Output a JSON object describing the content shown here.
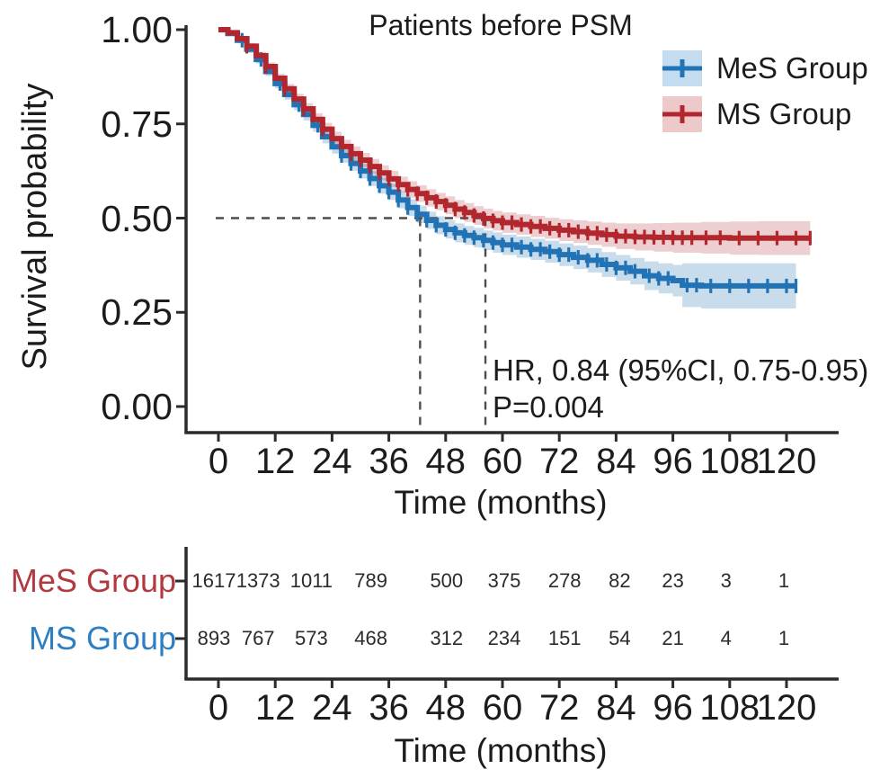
{
  "figure": {
    "title": "Patients before PSM",
    "annotation_line1": "HR, 0.84 (95%CI, 0.75-0.95)",
    "annotation_line2": "P=0.004"
  },
  "axes": {
    "y_label": "Survival probability",
    "x_label": "Time (months)",
    "y_ticks": [
      {
        "label": "1.00",
        "value": 1.0
      },
      {
        "label": "0.75",
        "value": 0.75
      },
      {
        "label": "0.50",
        "value": 0.5
      },
      {
        "label": "0.25",
        "value": 0.25
      },
      {
        "label": "0.00",
        "value": 0.0
      }
    ],
    "x_ticks": [
      {
        "label": "0",
        "value": 0
      },
      {
        "label": "12",
        "value": 12
      },
      {
        "label": "24",
        "value": 24
      },
      {
        "label": "36",
        "value": 36
      },
      {
        "label": "48",
        "value": 48
      },
      {
        "label": "60",
        "value": 60
      },
      {
        "label": "72",
        "value": 72
      },
      {
        "label": "84",
        "value": 84
      },
      {
        "label": "96",
        "value": 96
      },
      {
        "label": "108",
        "value": 108
      },
      {
        "label": "120",
        "value": 120
      }
    ]
  },
  "legend": {
    "items": [
      {
        "label": "MeS Group",
        "color": "#2273b5",
        "fill": "#c3dcf0"
      },
      {
        "label": "MS Group",
        "color": "#b2262e",
        "fill": "#eec9ca"
      }
    ]
  },
  "colors": {
    "axis": "#2b2b2b",
    "dashed_guide": "#4d4d4d",
    "mes_curve": "#2273b5",
    "ms_curve": "#b2262e",
    "mes_band": "rgba(34,115,181,0.25)",
    "ms_band": "rgba(178,38,46,0.22)",
    "risk_label_mes": "#b13a40",
    "risk_label_ms": "#2e7fc1"
  },
  "chart_data": {
    "type": "line",
    "subtype": "kaplan-meier-step",
    "title": "Patients before PSM",
    "xlabel": "Time (months)",
    "ylabel": "Survival probability",
    "xlim": [
      0,
      126
    ],
    "ylim": [
      0,
      1
    ],
    "x_tick_values": [
      0,
      12,
      24,
      36,
      48,
      60,
      72,
      84,
      96,
      108,
      120
    ],
    "y_tick_values": [
      0,
      0.25,
      0.5,
      0.75,
      1.0
    ],
    "grid": false,
    "legend_position": "top-right",
    "annotation": {
      "hr_text": "HR, 0.84 (95%CI, 0.75-0.95)",
      "p_text": "P=0.004"
    },
    "median_lines": {
      "y": 0.5,
      "x_values": [
        42.6,
        56.4
      ]
    },
    "series": [
      {
        "name": "MeS Group",
        "color": "#2273b5",
        "band_color": "rgba(34,115,181,0.25)",
        "points": [
          [
            0,
            1.0,
            0.004
          ],
          [
            2,
            0.99,
            0.006
          ],
          [
            4,
            0.972,
            0.008
          ],
          [
            6,
            0.948,
            0.01
          ],
          [
            8,
            0.921,
            0.011
          ],
          [
            10,
            0.889,
            0.012
          ],
          [
            12,
            0.857,
            0.013
          ],
          [
            14,
            0.828,
            0.014
          ],
          [
            16,
            0.801,
            0.015
          ],
          [
            18,
            0.775,
            0.016
          ],
          [
            20,
            0.746,
            0.017
          ],
          [
            22,
            0.716,
            0.018
          ],
          [
            24,
            0.689,
            0.018
          ],
          [
            26,
            0.666,
            0.019
          ],
          [
            28,
            0.645,
            0.019
          ],
          [
            30,
            0.625,
            0.02
          ],
          [
            32,
            0.605,
            0.02
          ],
          [
            34,
            0.586,
            0.021
          ],
          [
            36,
            0.569,
            0.021
          ],
          [
            38,
            0.548,
            0.022
          ],
          [
            40,
            0.528,
            0.022
          ],
          [
            42,
            0.51,
            0.023
          ],
          [
            44,
            0.494,
            0.023
          ],
          [
            46,
            0.481,
            0.024
          ],
          [
            48,
            0.47,
            0.024
          ],
          [
            50,
            0.461,
            0.025
          ],
          [
            52,
            0.454,
            0.025
          ],
          [
            54,
            0.448,
            0.026
          ],
          [
            56,
            0.441,
            0.026
          ],
          [
            58,
            0.435,
            0.027
          ],
          [
            60,
            0.429,
            0.027
          ],
          [
            63,
            0.423,
            0.028
          ],
          [
            66,
            0.417,
            0.028
          ],
          [
            69,
            0.411,
            0.029
          ],
          [
            72,
            0.403,
            0.03
          ],
          [
            75,
            0.396,
            0.031
          ],
          [
            78,
            0.388,
            0.032
          ],
          [
            81,
            0.377,
            0.033
          ],
          [
            84,
            0.368,
            0.034
          ],
          [
            87,
            0.359,
            0.035
          ],
          [
            90,
            0.347,
            0.038
          ],
          [
            93,
            0.34,
            0.04
          ],
          [
            96,
            0.334,
            0.042
          ],
          [
            98,
            0.322,
            0.058
          ],
          [
            102,
            0.32,
            0.06
          ],
          [
            108,
            0.32,
            0.06
          ],
          [
            114,
            0.32,
            0.06
          ],
          [
            122,
            0.32,
            0.06
          ]
        ],
        "censor_times": [
          5,
          9,
          13,
          17,
          21,
          26,
          28,
          30,
          32,
          34,
          36,
          38,
          40,
          42,
          44,
          46,
          48,
          50,
          52,
          54,
          56,
          58,
          60,
          62,
          64,
          66,
          68,
          70,
          72,
          74,
          76,
          78,
          80,
          82,
          84,
          86,
          88,
          91,
          93,
          95,
          99,
          101,
          104,
          108,
          112,
          116,
          120,
          122
        ]
      },
      {
        "name": "MS Group",
        "color": "#b2262e",
        "band_color": "rgba(178,38,46,0.22)",
        "points": [
          [
            0,
            1.0,
            0.004
          ],
          [
            2,
            0.992,
            0.005
          ],
          [
            4,
            0.976,
            0.007
          ],
          [
            6,
            0.956,
            0.009
          ],
          [
            8,
            0.931,
            0.01
          ],
          [
            10,
            0.902,
            0.011
          ],
          [
            12,
            0.871,
            0.012
          ],
          [
            14,
            0.843,
            0.013
          ],
          [
            16,
            0.816,
            0.014
          ],
          [
            18,
            0.79,
            0.015
          ],
          [
            20,
            0.762,
            0.016
          ],
          [
            22,
            0.736,
            0.017
          ],
          [
            24,
            0.711,
            0.018
          ],
          [
            26,
            0.69,
            0.018
          ],
          [
            28,
            0.671,
            0.019
          ],
          [
            30,
            0.654,
            0.019
          ],
          [
            32,
            0.637,
            0.02
          ],
          [
            34,
            0.62,
            0.02
          ],
          [
            36,
            0.604,
            0.021
          ],
          [
            38,
            0.589,
            0.021
          ],
          [
            40,
            0.576,
            0.022
          ],
          [
            42,
            0.565,
            0.022
          ],
          [
            44,
            0.554,
            0.023
          ],
          [
            46,
            0.544,
            0.023
          ],
          [
            48,
            0.534,
            0.024
          ],
          [
            50,
            0.524,
            0.024
          ],
          [
            52,
            0.515,
            0.025
          ],
          [
            54,
            0.507,
            0.025
          ],
          [
            56,
            0.499,
            0.026
          ],
          [
            58,
            0.493,
            0.026
          ],
          [
            60,
            0.488,
            0.027
          ],
          [
            63,
            0.483,
            0.027
          ],
          [
            66,
            0.478,
            0.028
          ],
          [
            69,
            0.473,
            0.028
          ],
          [
            72,
            0.468,
            0.029
          ],
          [
            75,
            0.464,
            0.03
          ],
          [
            78,
            0.46,
            0.031
          ],
          [
            81,
            0.456,
            0.032
          ],
          [
            84,
            0.452,
            0.034
          ],
          [
            88,
            0.45,
            0.036
          ],
          [
            92,
            0.449,
            0.038
          ],
          [
            96,
            0.448,
            0.04
          ],
          [
            102,
            0.448,
            0.042
          ],
          [
            108,
            0.447,
            0.044
          ],
          [
            114,
            0.447,
            0.045
          ],
          [
            120,
            0.447,
            0.045
          ],
          [
            125,
            0.447,
            0.045
          ]
        ],
        "censor_times": [
          6,
          10,
          14,
          18,
          22,
          28,
          30,
          32,
          34,
          36,
          38,
          40,
          42,
          44,
          46,
          48,
          50,
          52,
          54,
          56,
          58,
          60,
          62,
          64,
          66,
          68,
          70,
          72,
          74,
          76,
          78,
          80,
          82,
          84,
          86,
          88,
          90,
          92,
          94,
          96,
          98,
          100,
          103,
          106,
          110,
          114,
          118,
          122,
          125
        ]
      }
    ]
  },
  "risk_table": {
    "x_label": "Time (months)",
    "rows": [
      {
        "label": "MeS Group",
        "label_color": "#b13a40",
        "counts": [
          1617,
          1373,
          1011,
          789,
          500,
          375,
          278,
          82,
          23,
          3,
          1
        ]
      },
      {
        "label": "MS Group",
        "label_color": "#2e7fc1",
        "counts": [
          893,
          767,
          573,
          468,
          312,
          234,
          151,
          54,
          21,
          4,
          1
        ]
      }
    ]
  }
}
